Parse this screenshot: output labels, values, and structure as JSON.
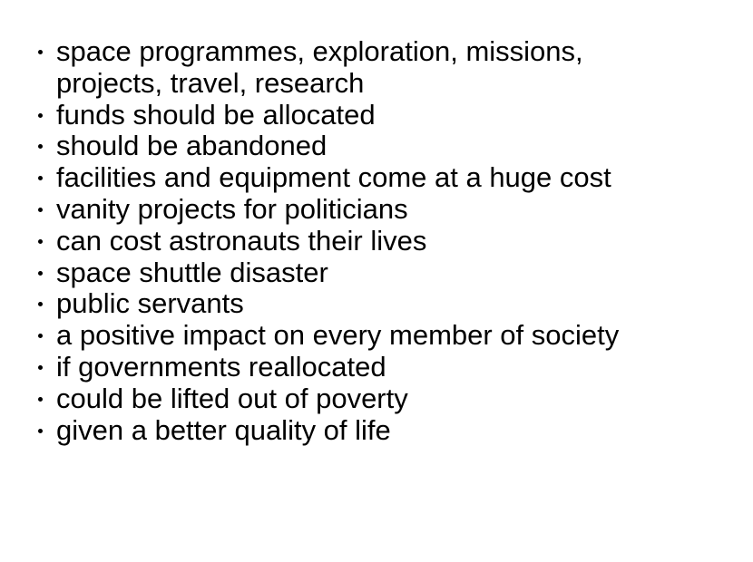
{
  "items": [
    {
      "text": "space programmes, exploration, missions, projects, travel, research"
    },
    {
      "text": "funds should be allocated"
    },
    {
      "text": "should be abandoned"
    },
    {
      "text": "facilities and equipment come at a huge cost"
    },
    {
      "text": "vanity projects for politicians"
    },
    {
      "text": "can cost astronauts their lives"
    },
    {
      "text": "space shuttle disaster"
    },
    {
      "text": "public servants"
    },
    {
      "text": "a positive impact on every member of society"
    },
    {
      "text": "if governments reallocated"
    },
    {
      "text": "could be lifted out of poverty"
    },
    {
      "text": "given a better quality of life"
    }
  ]
}
